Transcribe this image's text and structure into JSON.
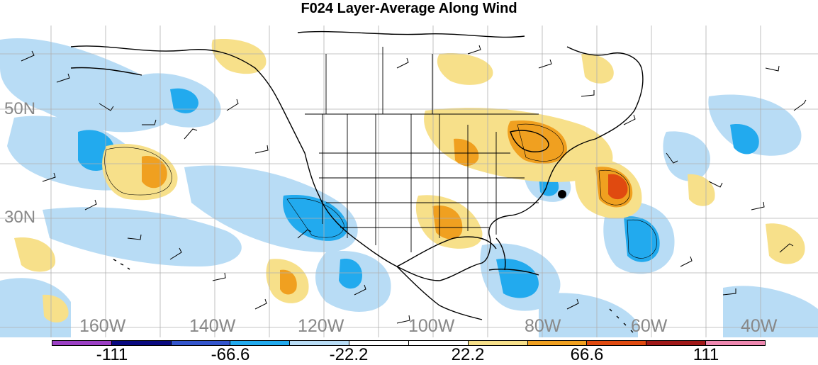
{
  "title": "F024 Layer-Average Along Wind",
  "lat_labels": [
    "50N",
    "30N"
  ],
  "lon_labels": [
    "160W",
    "140W",
    "120W",
    "100W",
    "80W",
    "60W",
    "40W"
  ],
  "colorbar": {
    "labels": [
      "-111",
      "-66.6",
      "-22.2",
      "22.2",
      "66.6",
      "111"
    ],
    "colors": [
      "#9b3fc4",
      "#0a0a80",
      "#3355cc",
      "#22aaee",
      "#b8dcf5",
      "#ffffff",
      "#ffffff",
      "#f7e08a",
      "#f0a020",
      "#e04a10",
      "#a01818",
      "#ee88b0"
    ]
  },
  "map_colors": {
    "land_outline": "#000000",
    "grid": "#b0b0b0",
    "light_blue": "#b8dcf5",
    "blue": "#22aaee",
    "dark_blue": "#3355cc",
    "yellow": "#f7e08a",
    "orange": "#f0a020",
    "red_orange": "#e04a10"
  }
}
